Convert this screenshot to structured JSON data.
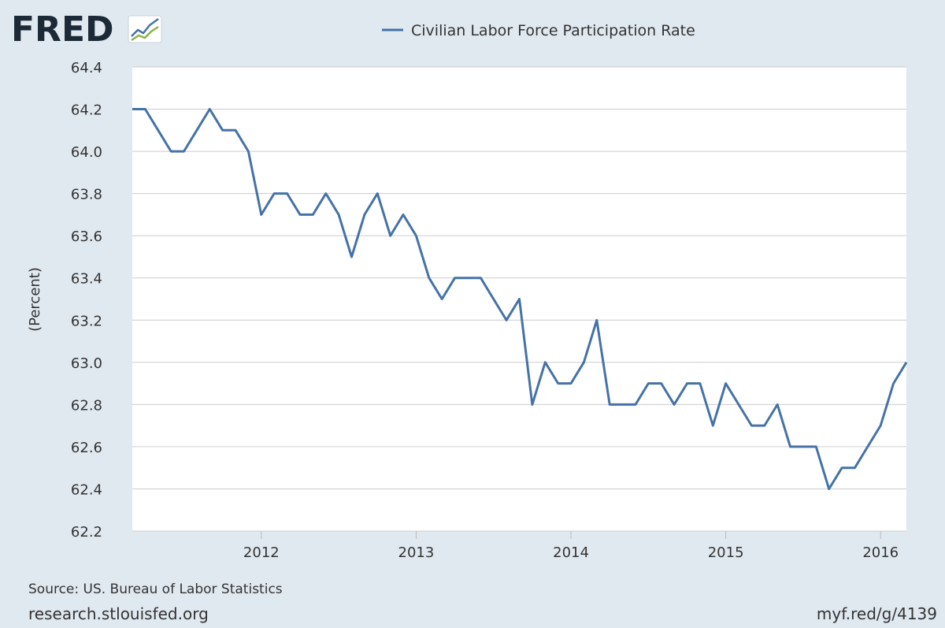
{
  "brand": {
    "logo_text": "FRED",
    "logo_icon": "trend-lines-icon"
  },
  "legend": {
    "label": "Civilian Labor Force Participation Rate",
    "color": "#4572a7"
  },
  "footer": {
    "source": "Source: US. Bureau of Labor Statistics",
    "site": "research.stlouisfed.org",
    "short_link": "myf.red/g/4139"
  },
  "colors": {
    "background": "#e1e9f0",
    "plot_background": "#ffffff",
    "gridline": "#cccccc",
    "series": "#4572a7"
  },
  "chart_data": {
    "type": "line",
    "title": "",
    "xlabel": "",
    "ylabel": "(Percent)",
    "ylim": [
      62.2,
      64.4
    ],
    "yticks": [
      "62.2",
      "62.4",
      "62.6",
      "62.8",
      "63.0",
      "63.2",
      "63.4",
      "63.6",
      "63.8",
      "64.0",
      "64.2",
      "64.4"
    ],
    "xlim": [
      "2011-03",
      "2016-03"
    ],
    "xticks": [
      "2012",
      "2013",
      "2014",
      "2015",
      "2016"
    ],
    "grid": true,
    "legend_position": "top",
    "series": [
      {
        "name": "Civilian Labor Force Participation Rate",
        "x": [
          "2011-03",
          "2011-04",
          "2011-05",
          "2011-06",
          "2011-07",
          "2011-08",
          "2011-09",
          "2011-10",
          "2011-11",
          "2011-12",
          "2012-01",
          "2012-02",
          "2012-03",
          "2012-04",
          "2012-05",
          "2012-06",
          "2012-07",
          "2012-08",
          "2012-09",
          "2012-10",
          "2012-11",
          "2012-12",
          "2013-01",
          "2013-02",
          "2013-03",
          "2013-04",
          "2013-05",
          "2013-06",
          "2013-07",
          "2013-08",
          "2013-09",
          "2013-10",
          "2013-11",
          "2013-12",
          "2014-01",
          "2014-02",
          "2014-03",
          "2014-04",
          "2014-05",
          "2014-06",
          "2014-07",
          "2014-08",
          "2014-09",
          "2014-10",
          "2014-11",
          "2014-12",
          "2015-01",
          "2015-02",
          "2015-03",
          "2015-04",
          "2015-05",
          "2015-06",
          "2015-07",
          "2015-08",
          "2015-09",
          "2015-10",
          "2015-11",
          "2015-12",
          "2016-01",
          "2016-02",
          "2016-03"
        ],
        "values": [
          64.2,
          64.2,
          64.1,
          64.0,
          64.0,
          64.1,
          64.2,
          64.1,
          64.1,
          64.0,
          63.7,
          63.8,
          63.8,
          63.7,
          63.7,
          63.8,
          63.7,
          63.5,
          63.7,
          63.8,
          63.6,
          63.7,
          63.6,
          63.4,
          63.3,
          63.4,
          63.4,
          63.4,
          63.3,
          63.2,
          63.3,
          62.8,
          63.0,
          62.9,
          62.9,
          63.0,
          63.2,
          62.8,
          62.8,
          62.8,
          62.9,
          62.9,
          62.8,
          62.9,
          62.9,
          62.7,
          62.9,
          62.8,
          62.7,
          62.7,
          62.8,
          62.6,
          62.6,
          62.6,
          62.4,
          62.5,
          62.5,
          62.6,
          62.7,
          62.9,
          63.0
        ]
      }
    ]
  }
}
